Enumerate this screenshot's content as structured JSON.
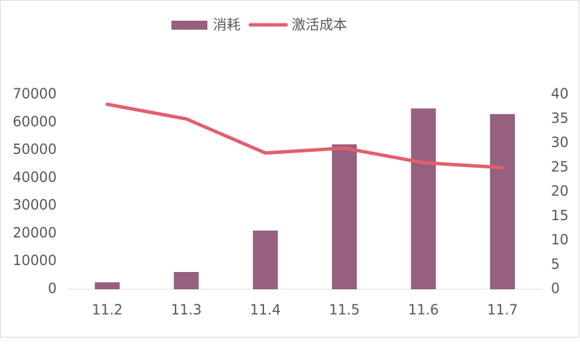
{
  "chart_data": {
    "type": "bar",
    "categories": [
      "11.2",
      "11.3",
      "11.4",
      "11.5",
      "11.6",
      "11.7"
    ],
    "series": [
      {
        "name": "消耗",
        "type": "bar",
        "color": "#96607e",
        "values": [
          2500,
          6200,
          21100,
          52100,
          65000,
          63000
        ]
      },
      {
        "name": "激活成本",
        "type": "line",
        "axis": "y2",
        "color": "#e0606e",
        "values": [
          38,
          35,
          28,
          29,
          26,
          25
        ]
      }
    ],
    "ylim": [
      0,
      70000
    ],
    "yticks": [
      0,
      10000,
      20000,
      30000,
      40000,
      50000,
      60000,
      70000
    ],
    "y2lim": [
      0,
      40
    ],
    "y2ticks": [
      0,
      5,
      10,
      15,
      20,
      25,
      30,
      35,
      40
    ],
    "legend": "top",
    "grid": false
  }
}
